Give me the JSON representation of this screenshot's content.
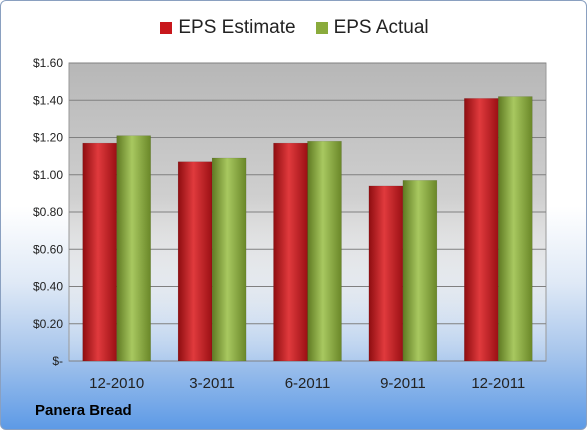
{
  "chart_data": {
    "type": "bar",
    "categories": [
      "12-2010",
      "3-2011",
      "6-2011",
      "9-2011",
      "12-2011"
    ],
    "series": [
      {
        "name": "EPS Estimate",
        "values": [
          1.17,
          1.07,
          1.17,
          0.94,
          1.41
        ],
        "color": "#c8171c"
      },
      {
        "name": "EPS Actual",
        "values": [
          1.21,
          1.09,
          1.18,
          0.97,
          1.42
        ],
        "color": "#8aab3c"
      }
    ],
    "yticks": [
      "$-",
      "$0.20",
      "$0.40",
      "$0.60",
      "$0.80",
      "$1.00",
      "$1.20",
      "$1.40",
      "$1.60"
    ],
    "ylim": [
      0,
      1.6
    ],
    "grid": true,
    "legend": "top-center",
    "footer": "Panera Bread"
  }
}
